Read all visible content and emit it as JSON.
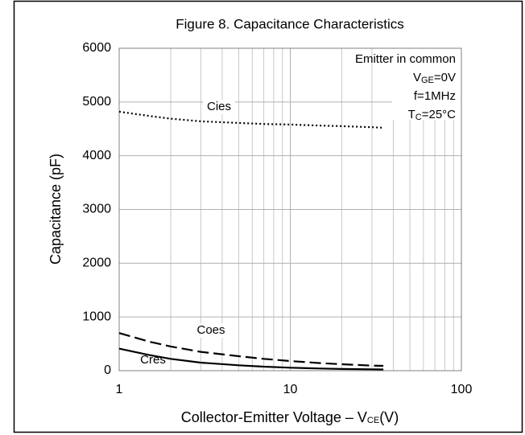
{
  "chart_data": {
    "type": "line",
    "title": "Figure 8. Capacitance Characteristics",
    "xlabel": [
      "Collector-Emitter Voltage  –  V",
      "CE",
      "(V)"
    ],
    "ylabel": "Capacitance (pF)",
    "annotation": [
      [
        "Emitter in common"
      ],
      [
        "V",
        "GE",
        "=0V"
      ],
      [
        "f=1MHz"
      ],
      [
        "T",
        "C",
        "=25°C"
      ]
    ],
    "x": [
      1,
      1.5,
      2,
      3,
      5,
      7,
      10,
      15,
      20,
      30,
      35
    ],
    "series": [
      {
        "name": "Cies",
        "color": "#000000",
        "dash": "dotted",
        "values": [
          4820,
          4740,
          4690,
          4640,
          4610,
          4590,
          4580,
          4560,
          4550,
          4530,
          4520
        ]
      },
      {
        "name": "Coes",
        "color": "#000000",
        "dash": "dashed",
        "values": [
          700,
          540,
          450,
          350,
          270,
          220,
          180,
          140,
          120,
          95,
          90
        ]
      },
      {
        "name": "Cres",
        "color": "#000000",
        "dash": "solid",
        "values": [
          410,
          290,
          220,
          150,
          100,
          75,
          55,
          40,
          32,
          25,
          22
        ]
      }
    ],
    "xlog": true,
    "xlim": [
      1,
      100
    ],
    "xticks": [
      1,
      10,
      100
    ],
    "xminorticks": [
      2,
      3,
      4,
      5,
      6,
      7,
      8,
      9,
      20,
      30,
      40,
      50,
      60,
      70,
      80,
      90
    ],
    "ylim": [
      0,
      6000
    ],
    "yticks": [
      0,
      1000,
      2000,
      3000,
      4000,
      5000,
      6000
    ],
    "grid": true
  }
}
